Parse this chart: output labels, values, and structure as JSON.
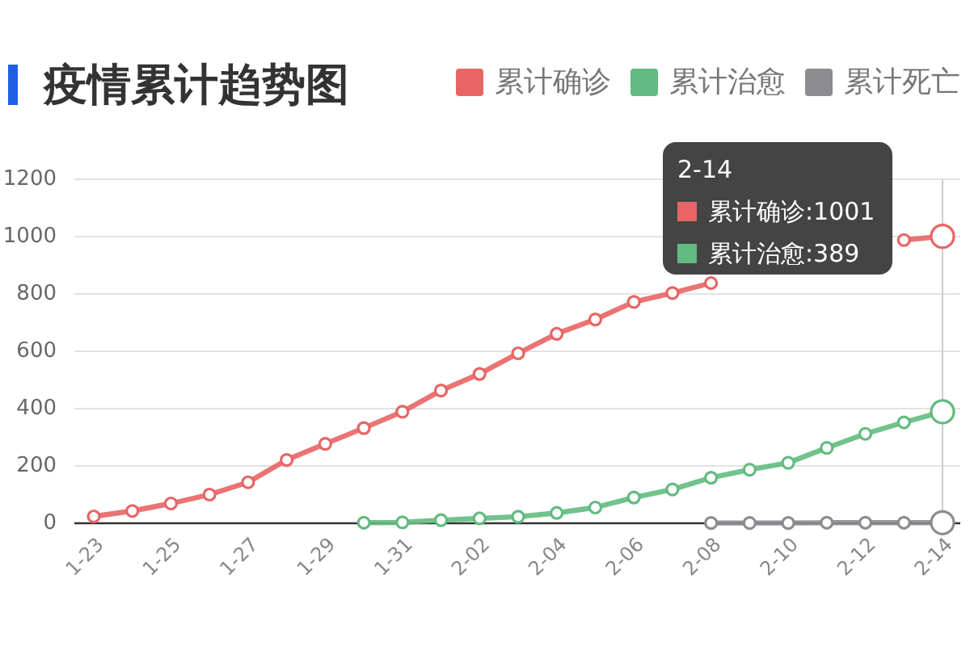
{
  "chart_data": {
    "type": "line",
    "title": "疫情累计趋势图",
    "categories": [
      "1-23",
      null,
      "1-25",
      null,
      "1-27",
      null,
      "1-29",
      null,
      "1-31",
      null,
      "2-02",
      null,
      "2-04",
      null,
      "2-06",
      null,
      "2-08",
      null,
      "2-10",
      null,
      "2-12",
      null,
      "2-14"
    ],
    "series": [
      {
        "name": "累计确诊",
        "color": "#e86565",
        "values": [
          24,
          43,
          69,
          100,
          143,
          221,
          277,
          332,
          389,
          463,
          521,
          593,
          661,
          711,
          772,
          803,
          838,
          null,
          null,
          null,
          null,
          988,
          1001
        ]
      },
      {
        "name": "累计治愈",
        "color": "#62bb80",
        "values": [
          null,
          null,
          null,
          null,
          null,
          null,
          null,
          2,
          3,
          11,
          17,
          23,
          36,
          55,
          90,
          118,
          159,
          187,
          211,
          263,
          312,
          352,
          389
        ]
      },
      {
        "name": "累计死亡",
        "color": "#8c8c90",
        "values": [
          null,
          null,
          null,
          null,
          null,
          null,
          null,
          null,
          null,
          null,
          null,
          null,
          null,
          null,
          null,
          null,
          1,
          1,
          1,
          2,
          2,
          2,
          2
        ]
      }
    ],
    "ylim": [
      0,
      1200
    ],
    "yticks": [
      0,
      200,
      400,
      600,
      800,
      1000,
      1200
    ],
    "grid": "y",
    "legend": "top right",
    "marker": "circle",
    "line_style": "solid",
    "ref_lines": [
      {
        "axis": "x",
        "value": "2-14",
        "color": "#cccccc"
      }
    ],
    "annotations": [
      "2-14",
      "累计确诊:1001",
      "累计治愈:389"
    ]
  }
}
